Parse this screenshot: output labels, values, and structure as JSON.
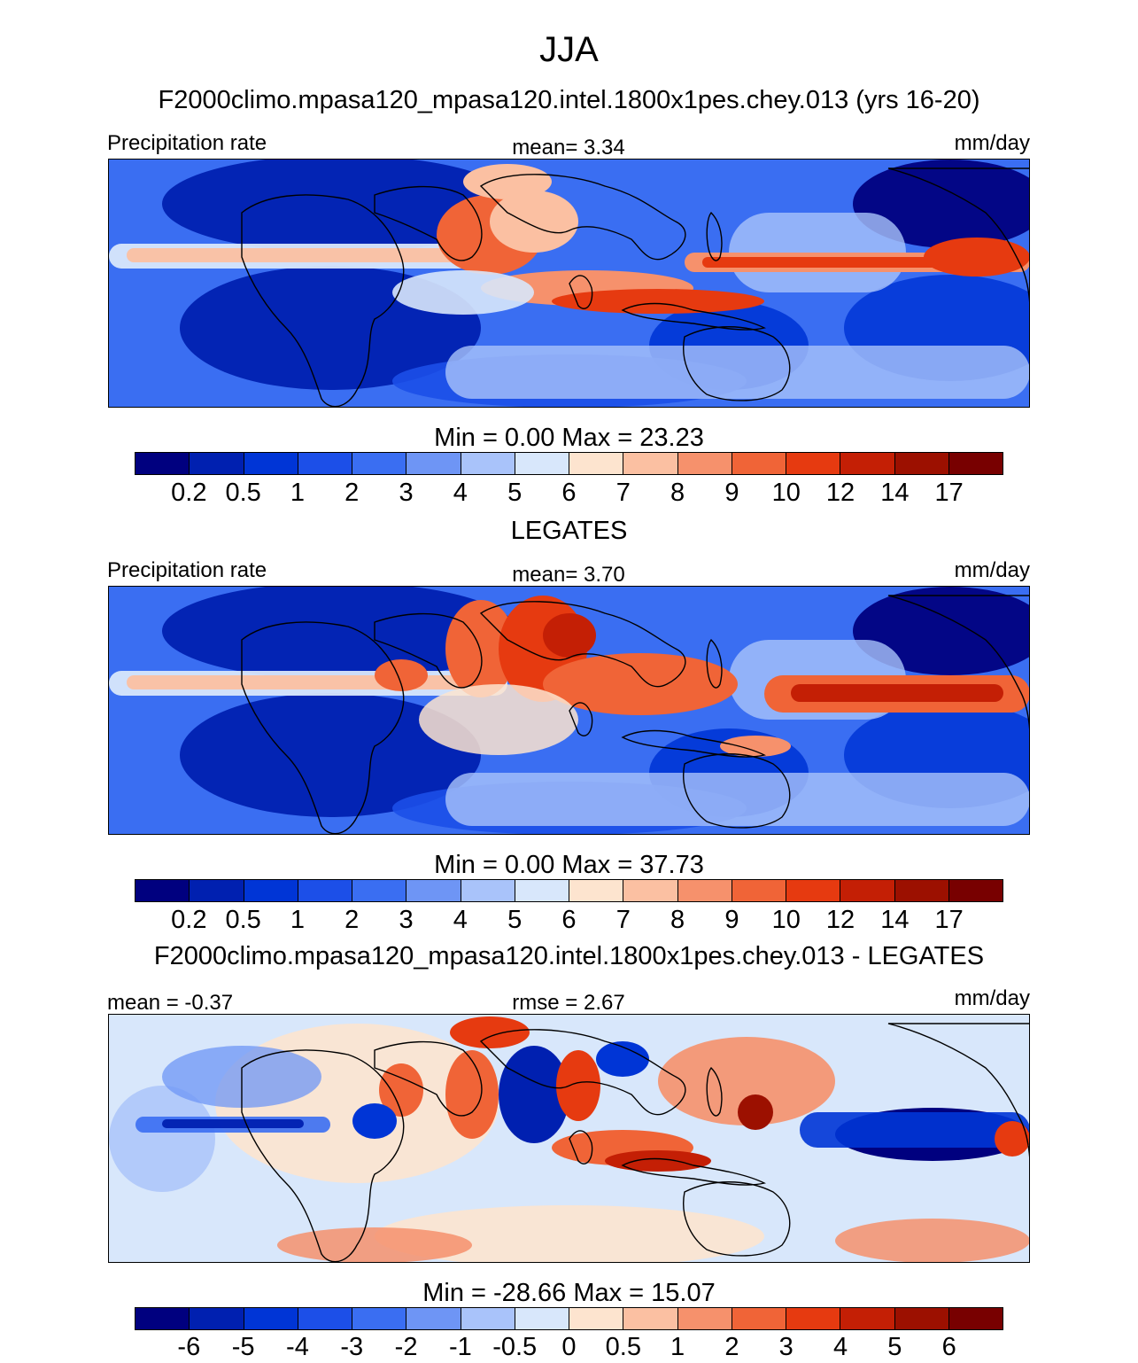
{
  "title": "JJA",
  "panels": [
    {
      "title": "F2000climo.mpasa120_mpasa120.intel.1800x1pes.chey.013 (yrs 16-20)",
      "left_label": "Precipitation rate",
      "center_label": "mean=   3.34",
      "right_label": "mm/day",
      "minmax": "Min =   0.00 Max =  23.23",
      "colorbar": "abs"
    },
    {
      "title": "LEGATES",
      "left_label": "Precipitation rate",
      "center_label": "mean=   3.70",
      "right_label": "mm/day",
      "minmax": "Min =   0.00 Max =  37.73",
      "colorbar": "abs"
    },
    {
      "title": "F2000climo.mpasa120_mpasa120.intel.1800x1pes.chey.013 - LEGATES",
      "left_label": "mean =  -0.37",
      "center_label": "rmse =   2.67",
      "right_label": "mm/day",
      "minmax": "Min = -28.66 Max =  15.07",
      "colorbar": "diff"
    }
  ],
  "colorbars": {
    "abs": {
      "ticks": [
        "0.2",
        "0.5",
        "1",
        "2",
        "3",
        "4",
        "5",
        "6",
        "7",
        "8",
        "9",
        "10",
        "12",
        "14",
        "17"
      ]
    },
    "diff": {
      "ticks": [
        "-6",
        "-5",
        "-4",
        "-3",
        "-2",
        "-1",
        "-0.5",
        "0",
        "0.5",
        "1",
        "2",
        "3",
        "4",
        "5",
        "6"
      ]
    }
  },
  "palette": [
    "#00007f",
    "#0020b0",
    "#0035d6",
    "#1c4fe8",
    "#3a6ef2",
    "#6e95f5",
    "#a9c3fa",
    "#d8e7fb",
    "#fde4cf",
    "#fbc0a2",
    "#f6916c",
    "#f06437",
    "#e63a10",
    "#c41f05",
    "#9c1000",
    "#780000"
  ],
  "chart_data": {
    "type": "heatmap",
    "season": "JJA",
    "variable": "Precipitation rate",
    "units": "mm/day",
    "maps": [
      {
        "name": "F2000climo.mpasa120_mpasa120.intel.1800x1pes.chey.013 (yrs 16-20)",
        "mean": 3.34,
        "min": 0.0,
        "max": 23.23,
        "levels": [
          0.2,
          0.5,
          1,
          2,
          3,
          4,
          5,
          6,
          7,
          8,
          9,
          10,
          12,
          14,
          17
        ]
      },
      {
        "name": "LEGATES",
        "mean": 3.7,
        "min": 0.0,
        "max": 37.73,
        "levels": [
          0.2,
          0.5,
          1,
          2,
          3,
          4,
          5,
          6,
          7,
          8,
          9,
          10,
          12,
          14,
          17
        ]
      },
      {
        "name": "F2000climo.mpasa120_mpasa120.intel.1800x1pes.chey.013 - LEGATES",
        "mean": -0.37,
        "rmse": 2.67,
        "min": -28.66,
        "max": 15.07,
        "levels": [
          -6,
          -5,
          -4,
          -3,
          -2,
          -1,
          -0.5,
          0,
          0.5,
          1,
          2,
          3,
          4,
          5,
          6
        ]
      }
    ]
  }
}
